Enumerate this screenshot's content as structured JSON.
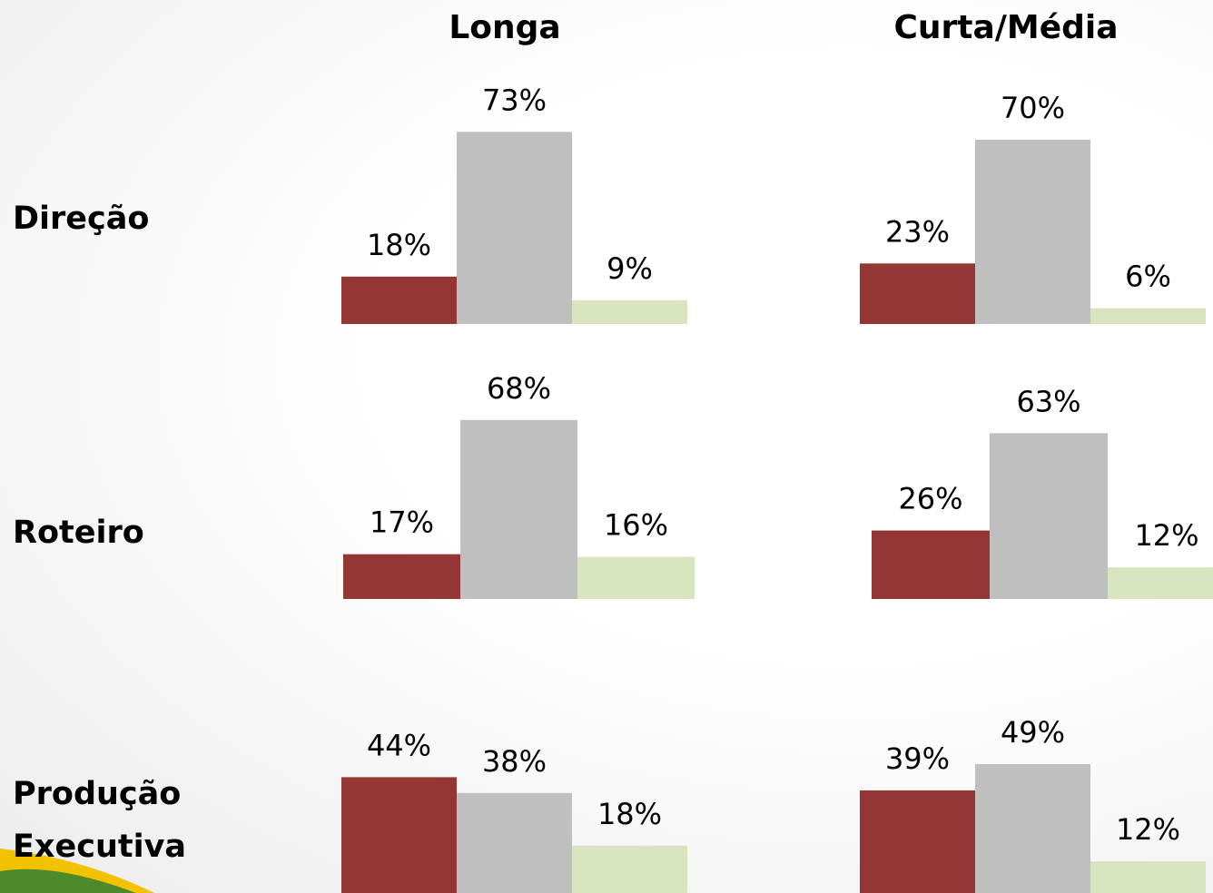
{
  "column_headers": [
    "Longa",
    "Curta/Média"
  ],
  "row_labels": [
    "Direção",
    "Roteiro",
    "Produção Executiva"
  ],
  "chart_data": [
    {
      "type": "bar",
      "values": [
        18,
        73,
        9
      ],
      "value_labels": [
        "18%",
        "73%",
        "9%"
      ],
      "colors": [
        "#943634",
        "#bfbfbf",
        "#d7e4bd"
      ]
    },
    {
      "type": "bar",
      "values": [
        23,
        70,
        6
      ],
      "value_labels": [
        "23%",
        "70%",
        "6%"
      ],
      "colors": [
        "#943634",
        "#bfbfbf",
        "#d7e4bd"
      ]
    },
    {
      "type": "bar",
      "values": [
        17,
        68,
        16
      ],
      "value_labels": [
        "17%",
        "68%",
        "16%"
      ],
      "colors": [
        "#943634",
        "#bfbfbf",
        "#d7e4bd"
      ]
    },
    {
      "type": "bar",
      "values": [
        26,
        63,
        12
      ],
      "value_labels": [
        "26%",
        "63%",
        "12%"
      ],
      "colors": [
        "#943634",
        "#bfbfbf",
        "#d7e4bd"
      ]
    },
    {
      "type": "bar",
      "values": [
        44,
        38,
        18
      ],
      "value_labels": [
        "44%",
        "38%",
        "18%"
      ],
      "colors": [
        "#943634",
        "#bfbfbf",
        "#d7e4bd"
      ]
    },
    {
      "type": "bar",
      "values": [
        39,
        49,
        12
      ],
      "value_labels": [
        "39%",
        "49%",
        "12%"
      ],
      "colors": [
        "#943634",
        "#bfbfbf",
        "#d7e4bd"
      ]
    }
  ]
}
